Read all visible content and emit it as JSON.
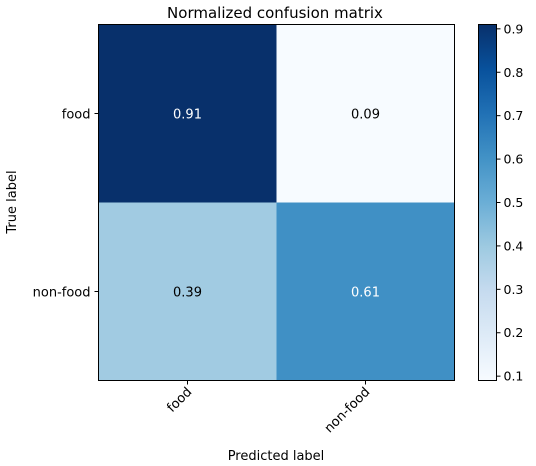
{
  "chart_data": {
    "type": "heatmap",
    "title": "Normalized confusion matrix",
    "xlabel": "Predicted label",
    "ylabel": "True label",
    "x_categories": [
      "food",
      "non-food"
    ],
    "y_categories": [
      "food",
      "non-food"
    ],
    "values": [
      [
        0.91,
        0.09
      ],
      [
        0.39,
        0.61
      ]
    ],
    "value_labels": [
      [
        "0.91",
        "0.09"
      ],
      [
        "0.39",
        "0.61"
      ]
    ],
    "colormap": "Blues",
    "vmin": 0.09,
    "vmax": 0.91,
    "colorbar_ticks": [
      0.1,
      0.2,
      0.3,
      0.4,
      0.5,
      0.6,
      0.7,
      0.8,
      0.9
    ],
    "colorbar_tick_labels": [
      "0.1",
      "0.2",
      "0.3",
      "0.4",
      "0.5",
      "0.6",
      "0.7",
      "0.8",
      "0.9"
    ],
    "colorbar_placement": "right",
    "grid": false
  }
}
